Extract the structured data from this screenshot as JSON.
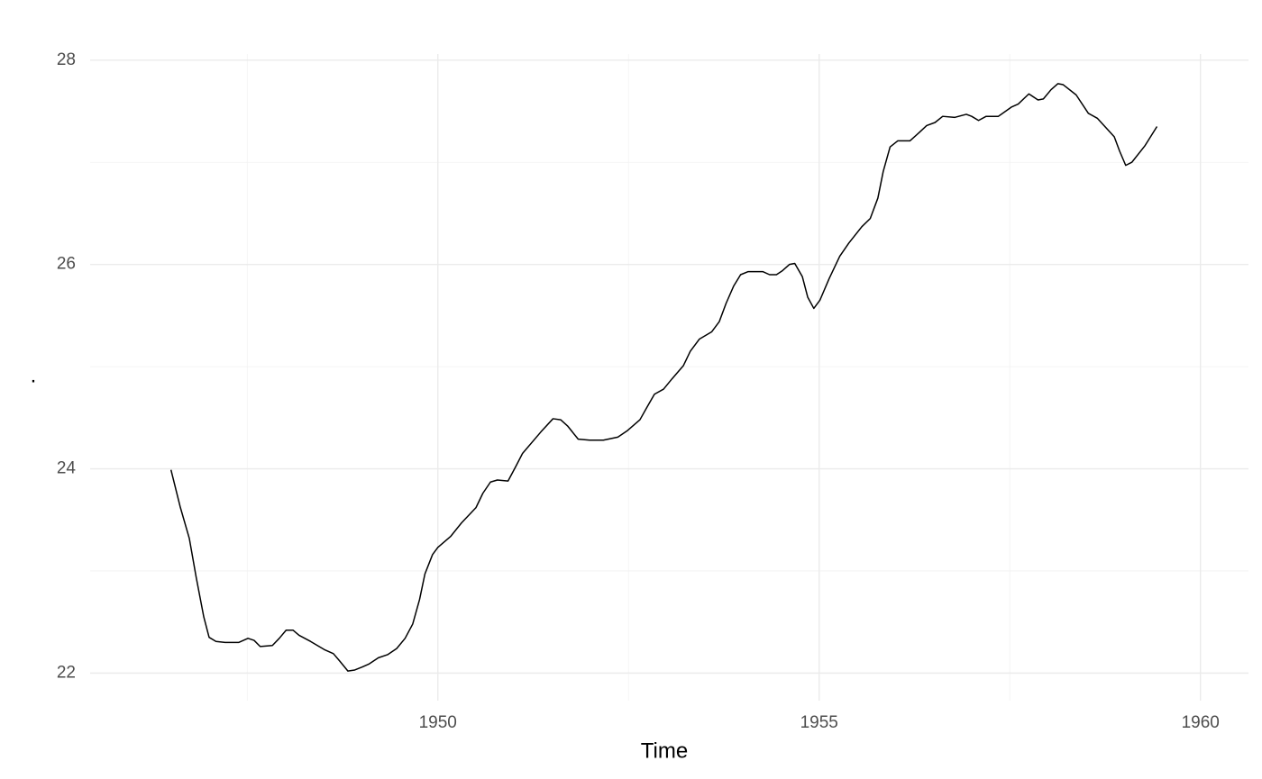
{
  "chart_data": {
    "type": "line",
    "x_label": "Time",
    "y_label": ".",
    "x": [
      1946.5,
      1946.62,
      1946.74,
      1946.83,
      1946.93,
      1947.0,
      1947.09,
      1947.21,
      1947.39,
      1947.51,
      1947.59,
      1947.67,
      1947.83,
      1947.92,
      1948.01,
      1948.1,
      1948.18,
      1948.33,
      1948.51,
      1948.63,
      1948.71,
      1948.82,
      1948.91,
      1949.01,
      1949.1,
      1949.22,
      1949.34,
      1949.46,
      1949.57,
      1949.67,
      1949.76,
      1949.83,
      1949.93,
      1950.0,
      1950.17,
      1950.31,
      1950.5,
      1950.59,
      1950.69,
      1950.78,
      1950.92,
      1951.02,
      1951.11,
      1951.35,
      1951.51,
      1951.61,
      1951.7,
      1951.84,
      1951.99,
      1952.17,
      1952.36,
      1952.48,
      1952.65,
      1952.74,
      1952.84,
      1952.96,
      1953.07,
      1953.22,
      1953.31,
      1953.43,
      1953.59,
      1953.69,
      1953.78,
      1953.88,
      1953.97,
      1954.07,
      1954.26,
      1954.35,
      1954.44,
      1954.52,
      1954.61,
      1954.68,
      1954.78,
      1954.85,
      1954.93,
      1955.01,
      1955.13,
      1955.27,
      1955.39,
      1955.56,
      1955.67,
      1955.77,
      1955.84,
      1955.93,
      1956.03,
      1956.19,
      1956.31,
      1956.41,
      1956.52,
      1956.62,
      1956.78,
      1956.93,
      1957.0,
      1957.09,
      1957.19,
      1957.35,
      1957.52,
      1957.61,
      1957.75,
      1957.87,
      1957.94,
      1958.04,
      1958.13,
      1958.2,
      1958.37,
      1958.53,
      1958.65,
      1958.87,
      1958.94,
      1959.02,
      1959.1,
      1959.27,
      1959.43
    ],
    "series": [
      {
        "color": "#000000",
        "values": [
          23.99,
          23.63,
          23.32,
          22.94,
          22.55,
          22.35,
          22.31,
          22.3,
          22.3,
          22.34,
          22.32,
          22.26,
          22.27,
          22.34,
          22.42,
          22.42,
          22.37,
          22.31,
          22.23,
          22.19,
          22.12,
          22.02,
          22.03,
          22.06,
          22.09,
          22.15,
          22.18,
          22.24,
          22.34,
          22.48,
          22.72,
          22.97,
          23.16,
          23.23,
          23.34,
          23.47,
          23.62,
          23.76,
          23.87,
          23.89,
          23.88,
          24.02,
          24.15,
          24.36,
          24.49,
          24.48,
          24.42,
          24.29,
          24.28,
          24.28,
          24.31,
          24.37,
          24.48,
          24.6,
          24.73,
          24.78,
          24.88,
          25.01,
          25.15,
          25.27,
          25.34,
          25.44,
          25.62,
          25.79,
          25.9,
          25.93,
          25.93,
          25.9,
          25.9,
          25.94,
          26.0,
          26.01,
          25.88,
          25.68,
          25.57,
          25.65,
          25.86,
          26.08,
          26.21,
          26.37,
          26.45,
          26.65,
          26.91,
          27.15,
          27.21,
          27.21,
          27.29,
          27.36,
          27.39,
          27.45,
          27.44,
          27.47,
          27.45,
          27.41,
          27.45,
          27.45,
          27.54,
          27.57,
          27.67,
          27.61,
          27.62,
          27.71,
          27.77,
          27.76,
          27.66,
          27.48,
          27.43,
          27.25,
          27.11,
          26.97,
          27.0,
          27.16,
          27.35
        ]
      }
    ],
    "xlim": [
      1945.44,
      1960.63
    ],
    "ylim": [
      21.73,
      28.06
    ],
    "xticks": [
      1950,
      1955,
      1960
    ],
    "yticks": [
      22,
      24,
      26,
      28
    ],
    "x_minor_grid": [
      1947.5,
      1952.5,
      1957.5
    ],
    "y_minor_grid": [
      23,
      25,
      27
    ],
    "grid": true
  }
}
